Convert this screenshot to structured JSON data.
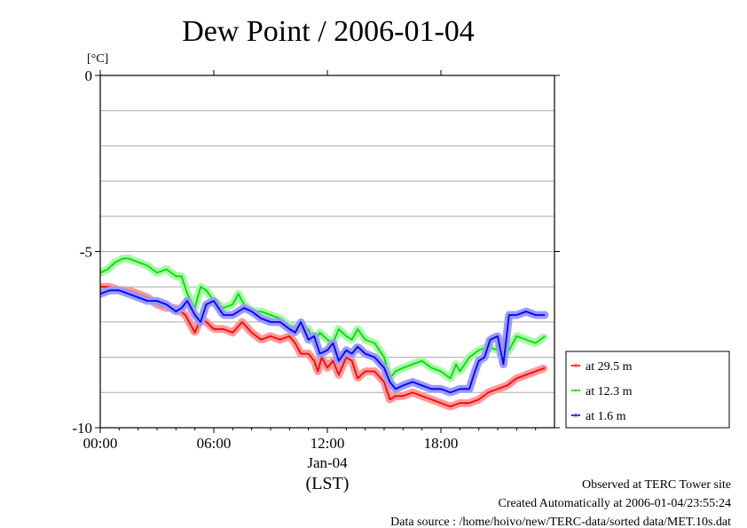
{
  "chart_data": {
    "type": "line",
    "title": "Dew Point / 2006-01-04",
    "yunit": "[°C]",
    "ylim": [
      -10,
      0
    ],
    "yticks": [
      "0",
      "-5",
      "-10"
    ],
    "xlim": [
      0,
      24
    ],
    "xticks": [
      {
        "label": "00:00",
        "hour": 0
      },
      {
        "label": "06:00",
        "hour": 6
      },
      {
        "label": "12:00",
        "hour": 12
      },
      {
        "label": "18:00",
        "hour": 18
      }
    ],
    "xdate_label": "Jan-04",
    "xzone_label": "(LST)",
    "grid": true,
    "legend_position": "right",
    "series": [
      {
        "name": "at 29.5 m",
        "color": "#ff0000",
        "light": "#ff9a9a",
        "x": [
          0,
          0.5,
          1,
          1.5,
          2,
          2.5,
          3,
          3.5,
          4,
          4.5,
          4.8,
          5,
          5.3,
          5.6,
          6,
          6.5,
          7,
          7.5,
          8,
          8.5,
          9,
          9.5,
          10,
          10.3,
          10.6,
          11,
          11.3,
          11.5,
          11.7,
          12,
          12.3,
          12.6,
          13,
          13.3,
          13.6,
          14,
          14.5,
          15,
          15.3,
          15.6,
          16,
          16.5,
          17,
          17.5,
          18,
          18.5,
          19,
          19.5,
          20,
          20.5,
          21,
          21.5,
          22,
          22.5,
          23,
          23.5
        ],
        "y": [
          -6.0,
          -6.0,
          -6.1,
          -6.1,
          -6.2,
          -6.3,
          -6.5,
          -6.6,
          -6.6,
          -6.8,
          -7.1,
          -7.3,
          -6.9,
          -7.0,
          -7.2,
          -7.2,
          -7.3,
          -7.0,
          -7.3,
          -7.5,
          -7.4,
          -7.5,
          -7.4,
          -7.6,
          -7.9,
          -7.9,
          -8.1,
          -8.4,
          -8.0,
          -8.3,
          -8.1,
          -8.5,
          -8.0,
          -8.1,
          -8.6,
          -8.4,
          -8.4,
          -8.7,
          -9.2,
          -9.1,
          -9.1,
          -9.0,
          -9.1,
          -9.2,
          -9.3,
          -9.4,
          -9.3,
          -9.3,
          -9.2,
          -9.0,
          -8.9,
          -8.8,
          -8.6,
          -8.5,
          -8.4,
          -8.3
        ]
      },
      {
        "name": "at 12.3 m",
        "color": "#00e000",
        "light": "#a8f8a8",
        "x": [
          0,
          0.4,
          0.8,
          1.2,
          1.5,
          2,
          2.5,
          3,
          3.5,
          4,
          4.3,
          4.6,
          5,
          5.3,
          5.6,
          6,
          6.5,
          7,
          7.3,
          7.6,
          8,
          8.5,
          9,
          9.5,
          10,
          10.5,
          11,
          11.3,
          11.6,
          12,
          12.3,
          12.6,
          13,
          13.3,
          13.6,
          14,
          14.5,
          15,
          15.3,
          15.6,
          16,
          16.5,
          17,
          17.5,
          18,
          18.5,
          18.8,
          19,
          19.5,
          20,
          20.5,
          21,
          21.3,
          21.6,
          22,
          22.5,
          23,
          23.5
        ],
        "y": [
          -5.6,
          -5.5,
          -5.3,
          -5.2,
          -5.2,
          -5.3,
          -5.4,
          -5.6,
          -5.5,
          -5.7,
          -5.7,
          -6.2,
          -6.6,
          -6.0,
          -6.1,
          -6.4,
          -6.6,
          -6.5,
          -6.2,
          -6.5,
          -6.7,
          -6.7,
          -6.8,
          -6.9,
          -7.1,
          -7.2,
          -7.2,
          -7.6,
          -7.3,
          -7.5,
          -7.6,
          -7.2,
          -7.4,
          -7.5,
          -7.2,
          -7.5,
          -7.6,
          -8.0,
          -8.6,
          -8.4,
          -8.3,
          -8.2,
          -8.1,
          -8.3,
          -8.4,
          -8.6,
          -8.2,
          -8.4,
          -8.0,
          -7.8,
          -7.7,
          -7.8,
          -8.0,
          -7.8,
          -7.4,
          -7.5,
          -7.6,
          -7.4
        ]
      },
      {
        "name": "at 1.6 m",
        "color": "#0000ff",
        "light": "#9a9aff",
        "x": [
          0,
          0.5,
          1,
          1.5,
          2,
          2.5,
          3,
          3.5,
          4,
          4.3,
          4.6,
          5,
          5.3,
          5.6,
          6,
          6.5,
          7,
          7.3,
          7.6,
          8,
          8.5,
          9,
          9.5,
          10,
          10.3,
          10.6,
          11,
          11.3,
          11.6,
          12,
          12.3,
          12.6,
          13,
          13.3,
          13.6,
          14,
          14.5,
          15,
          15.3,
          15.6,
          16,
          16.5,
          17,
          17.5,
          18,
          18.5,
          19,
          19.5,
          19.8,
          20,
          20.3,
          20.6,
          21,
          21.3,
          21.6,
          22,
          22.5,
          23,
          23.5
        ],
        "y": [
          -6.2,
          -6.1,
          -6.1,
          -6.2,
          -6.3,
          -6.4,
          -6.4,
          -6.5,
          -6.7,
          -6.6,
          -6.4,
          -6.8,
          -7.0,
          -6.5,
          -6.4,
          -6.8,
          -6.8,
          -6.7,
          -6.6,
          -6.7,
          -6.9,
          -7.0,
          -7.0,
          -7.2,
          -7.3,
          -7.0,
          -7.5,
          -7.4,
          -7.9,
          -7.8,
          -7.6,
          -8.1,
          -7.8,
          -7.9,
          -7.7,
          -7.9,
          -8.0,
          -8.3,
          -8.7,
          -8.9,
          -8.8,
          -8.7,
          -8.8,
          -8.9,
          -8.9,
          -9.0,
          -8.9,
          -8.9,
          -8.4,
          -8.1,
          -8.0,
          -7.5,
          -7.4,
          -8.2,
          -6.8,
          -6.8,
          -6.7,
          -6.8,
          -6.8
        ]
      }
    ]
  },
  "footer": {
    "line1": "Observed at TERC Tower site",
    "line2": "Created Automatically at 2006-01-04/23:55:24",
    "line3": "Data source : /home/hoivo/new/TERC-data/sorted  data/MET.10s.dat"
  }
}
